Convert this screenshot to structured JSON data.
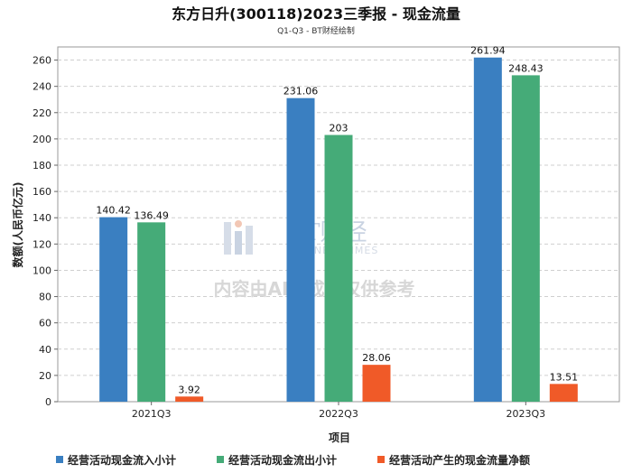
{
  "chart_data": {
    "type": "bar",
    "title": "东方日升(300118)2023三季报 - 现金流量",
    "subtitle": "Q1-Q3 - BT财经绘制",
    "xlabel": "项目",
    "ylabel": "数额(人民币亿元)",
    "ylim": [
      0,
      270
    ],
    "yticks": [
      0,
      20,
      40,
      60,
      80,
      100,
      120,
      140,
      160,
      180,
      200,
      220,
      240,
      260
    ],
    "grid": true,
    "legend_position": "bottom",
    "categories": [
      "2021Q3",
      "2022Q3",
      "2023Q3"
    ],
    "series": [
      {
        "name": "经营活动现金流入小计",
        "color": "#3a7fc1",
        "values": [
          140.42,
          231.06,
          261.94
        ],
        "labels": [
          "140.42",
          "231.06",
          "261.94"
        ]
      },
      {
        "name": "经营活动现金流出小计",
        "color": "#45ab78",
        "values": [
          136.49,
          203,
          248.43
        ],
        "labels": [
          "136.49",
          "203",
          "248.43"
        ]
      },
      {
        "name": "经营活动产生的现金流量净额",
        "color": "#f05a28",
        "values": [
          3.92,
          28.06,
          13.51
        ],
        "labels": [
          "3.92",
          "28.06",
          "13.51"
        ]
      }
    ]
  },
  "watermark": {
    "brand": "BT财经",
    "brand_en": "BUSINESSTIMES",
    "notice": "内容由AI生成，仅供参考"
  }
}
